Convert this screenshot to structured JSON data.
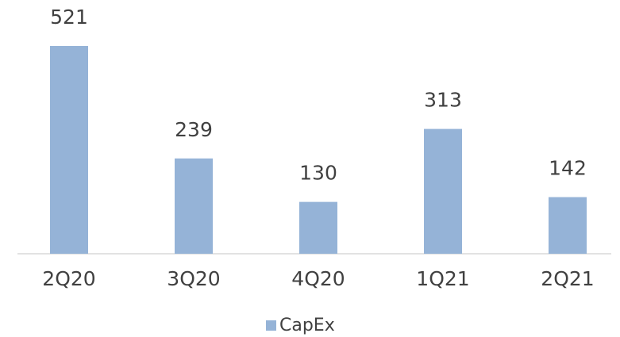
{
  "chart_data": {
    "type": "bar",
    "categories": [
      "2Q20",
      "3Q20",
      "4Q20",
      "1Q21",
      "2Q21"
    ],
    "series": [
      {
        "name": "CapEx",
        "color": "#95b3d7",
        "values": [
          521,
          239,
          130,
          313,
          142
        ]
      }
    ],
    "legend": "bottom"
  }
}
